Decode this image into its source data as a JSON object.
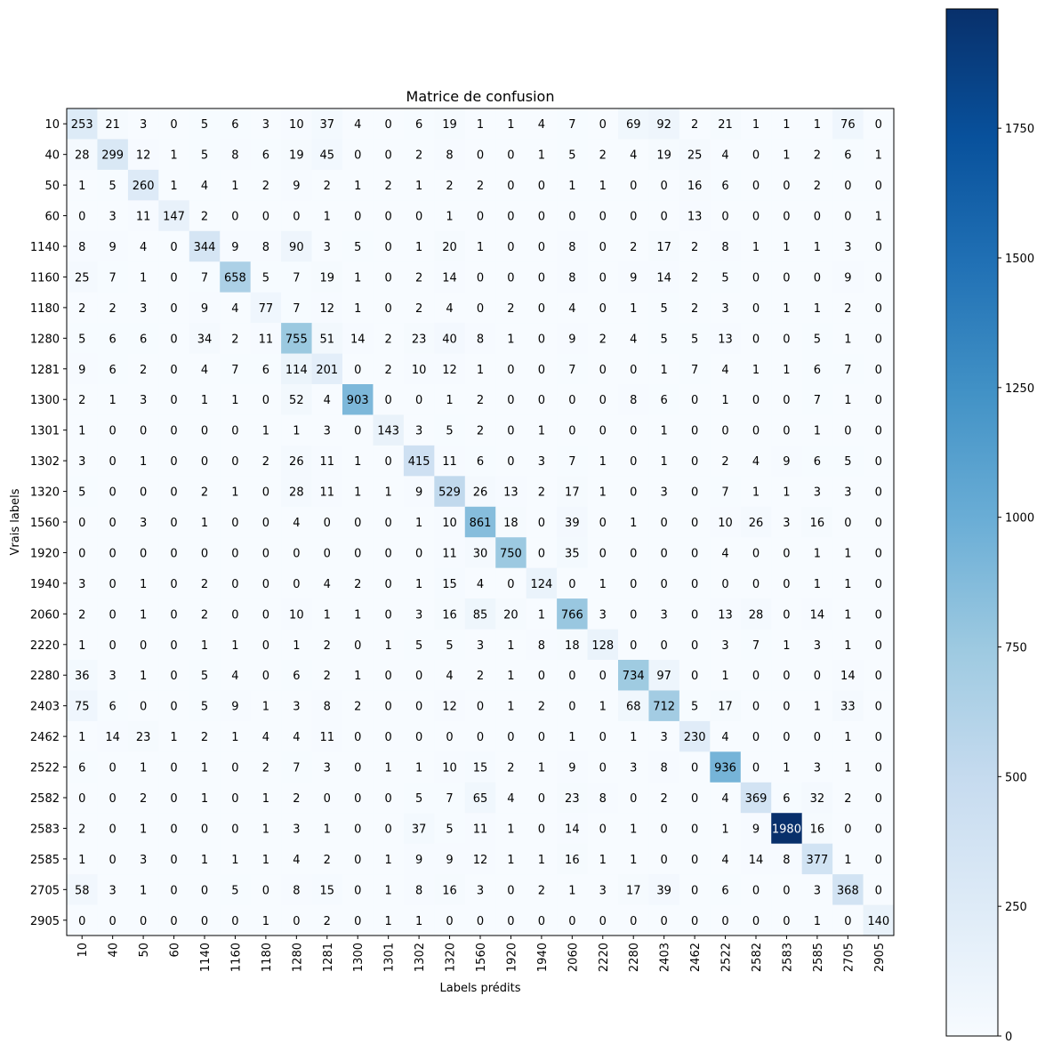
{
  "chart_data": {
    "type": "heatmap",
    "title": "Matrice de confusion",
    "xlabel": "Labels prédits",
    "ylabel": "Vrais labels",
    "labels": [
      "10",
      "40",
      "50",
      "60",
      "1140",
      "1160",
      "1180",
      "1280",
      "1281",
      "1300",
      "1301",
      "1302",
      "1320",
      "1560",
      "1920",
      "1940",
      "2060",
      "2220",
      "2280",
      "2403",
      "2462",
      "2522",
      "2582",
      "2583",
      "2585",
      "2705",
      "2905"
    ],
    "matrix": [
      [
        253,
        21,
        3,
        0,
        5,
        6,
        3,
        10,
        37,
        4,
        0,
        6,
        19,
        1,
        1,
        4,
        7,
        0,
        69,
        92,
        2,
        21,
        1,
        1,
        1,
        76,
        0
      ],
      [
        28,
        299,
        12,
        1,
        5,
        8,
        6,
        19,
        45,
        0,
        0,
        2,
        8,
        0,
        0,
        1,
        5,
        2,
        4,
        19,
        25,
        4,
        0,
        1,
        2,
        6,
        1
      ],
      [
        1,
        5,
        260,
        1,
        4,
        1,
        2,
        9,
        2,
        1,
        2,
        1,
        2,
        2,
        0,
        0,
        1,
        1,
        0,
        0,
        16,
        6,
        0,
        0,
        2,
        0,
        0
      ],
      [
        0,
        3,
        11,
        147,
        2,
        0,
        0,
        0,
        1,
        0,
        0,
        0,
        1,
        0,
        0,
        0,
        0,
        0,
        0,
        0,
        13,
        0,
        0,
        0,
        0,
        0,
        1
      ],
      [
        8,
        9,
        4,
        0,
        344,
        9,
        8,
        90,
        3,
        5,
        0,
        1,
        20,
        1,
        0,
        0,
        8,
        0,
        2,
        17,
        2,
        8,
        1,
        1,
        1,
        3,
        0
      ],
      [
        25,
        7,
        1,
        0,
        7,
        658,
        5,
        7,
        19,
        1,
        0,
        2,
        14,
        0,
        0,
        0,
        8,
        0,
        9,
        14,
        2,
        5,
        0,
        0,
        0,
        9,
        0
      ],
      [
        2,
        2,
        3,
        0,
        9,
        4,
        77,
        7,
        12,
        1,
        0,
        2,
        4,
        0,
        2,
        0,
        4,
        0,
        1,
        5,
        2,
        3,
        0,
        1,
        1,
        2,
        0
      ],
      [
        5,
        6,
        6,
        0,
        34,
        2,
        11,
        755,
        51,
        14,
        2,
        23,
        40,
        8,
        1,
        0,
        9,
        2,
        4,
        5,
        5,
        13,
        0,
        0,
        5,
        1,
        0
      ],
      [
        9,
        6,
        2,
        0,
        4,
        7,
        6,
        114,
        201,
        0,
        2,
        10,
        12,
        1,
        0,
        0,
        7,
        0,
        0,
        1,
        7,
        4,
        1,
        1,
        6,
        7,
        0
      ],
      [
        2,
        1,
        3,
        0,
        1,
        1,
        0,
        52,
        4,
        903,
        0,
        0,
        1,
        2,
        0,
        0,
        0,
        0,
        8,
        6,
        0,
        1,
        0,
        0,
        7,
        1,
        0
      ],
      [
        1,
        0,
        0,
        0,
        0,
        0,
        1,
        1,
        3,
        0,
        143,
        3,
        5,
        2,
        0,
        1,
        0,
        0,
        0,
        1,
        0,
        0,
        0,
        0,
        1,
        0,
        0
      ],
      [
        3,
        0,
        1,
        0,
        0,
        0,
        2,
        26,
        11,
        1,
        0,
        415,
        11,
        6,
        0,
        3,
        7,
        1,
        0,
        1,
        0,
        2,
        4,
        9,
        6,
        5,
        0
      ],
      [
        5,
        0,
        0,
        0,
        2,
        1,
        0,
        28,
        11,
        1,
        1,
        9,
        529,
        26,
        13,
        2,
        17,
        1,
        0,
        3,
        0,
        7,
        1,
        1,
        3,
        3,
        0
      ],
      [
        0,
        0,
        3,
        0,
        1,
        0,
        0,
        4,
        0,
        0,
        0,
        1,
        10,
        861,
        18,
        0,
        39,
        0,
        1,
        0,
        0,
        10,
        26,
        3,
        16,
        0,
        0
      ],
      [
        0,
        0,
        0,
        0,
        0,
        0,
        0,
        0,
        0,
        0,
        0,
        0,
        11,
        30,
        750,
        0,
        35,
        0,
        0,
        0,
        0,
        4,
        0,
        0,
        1,
        1,
        0
      ],
      [
        3,
        0,
        1,
        0,
        2,
        0,
        0,
        0,
        4,
        2,
        0,
        1,
        15,
        4,
        0,
        124,
        0,
        1,
        0,
        0,
        0,
        0,
        0,
        0,
        1,
        1,
        0
      ],
      [
        2,
        0,
        1,
        0,
        2,
        0,
        0,
        10,
        1,
        1,
        0,
        3,
        16,
        85,
        20,
        1,
        766,
        3,
        0,
        3,
        0,
        13,
        28,
        0,
        14,
        1,
        0
      ],
      [
        1,
        0,
        0,
        0,
        1,
        1,
        0,
        1,
        2,
        0,
        1,
        5,
        5,
        3,
        1,
        8,
        18,
        128,
        0,
        0,
        0,
        3,
        7,
        1,
        3,
        1,
        0
      ],
      [
        36,
        3,
        1,
        0,
        5,
        4,
        0,
        6,
        2,
        1,
        0,
        0,
        4,
        2,
        1,
        0,
        0,
        0,
        734,
        97,
        0,
        1,
        0,
        0,
        0,
        14,
        0
      ],
      [
        75,
        6,
        0,
        0,
        5,
        9,
        1,
        3,
        8,
        2,
        0,
        0,
        12,
        0,
        1,
        2,
        0,
        1,
        68,
        712,
        5,
        17,
        0,
        0,
        1,
        33,
        0
      ],
      [
        1,
        14,
        23,
        1,
        2,
        1,
        4,
        4,
        11,
        0,
        0,
        0,
        0,
        0,
        0,
        0,
        1,
        0,
        1,
        3,
        230,
        4,
        0,
        0,
        0,
        1,
        0
      ],
      [
        6,
        0,
        1,
        0,
        1,
        0,
        2,
        7,
        3,
        0,
        1,
        1,
        10,
        15,
        2,
        1,
        9,
        0,
        3,
        8,
        0,
        936,
        0,
        1,
        3,
        1,
        0
      ],
      [
        0,
        0,
        2,
        0,
        1,
        0,
        1,
        2,
        0,
        0,
        0,
        5,
        7,
        65,
        4,
        0,
        23,
        8,
        0,
        2,
        0,
        4,
        369,
        6,
        32,
        2,
        0
      ],
      [
        2,
        0,
        1,
        0,
        0,
        0,
        1,
        3,
        1,
        0,
        0,
        37,
        5,
        11,
        1,
        0,
        14,
        0,
        1,
        0,
        0,
        1,
        9,
        1980,
        16,
        0,
        0
      ],
      [
        1,
        0,
        3,
        0,
        1,
        1,
        1,
        4,
        2,
        0,
        1,
        9,
        9,
        12,
        1,
        1,
        16,
        1,
        1,
        0,
        0,
        4,
        14,
        8,
        377,
        1,
        0
      ],
      [
        58,
        3,
        1,
        0,
        0,
        5,
        0,
        8,
        15,
        0,
        1,
        8,
        16,
        3,
        0,
        2,
        1,
        3,
        17,
        39,
        0,
        6,
        0,
        0,
        3,
        368,
        0
      ],
      [
        0,
        0,
        0,
        0,
        0,
        0,
        1,
        0,
        2,
        0,
        1,
        1,
        0,
        0,
        0,
        0,
        0,
        0,
        0,
        0,
        0,
        0,
        0,
        0,
        1,
        0,
        140
      ]
    ],
    "colormap": "Blues",
    "colormap_low": "#f7fbff",
    "colormap_high": "#08306b",
    "vmin": 0,
    "vmax": 1980,
    "colorbar_ticks": [
      "0",
      "250",
      "500",
      "750",
      "1000",
      "1250",
      "1500",
      "1750"
    ],
    "grid": false,
    "colorbar_position": "right"
  }
}
